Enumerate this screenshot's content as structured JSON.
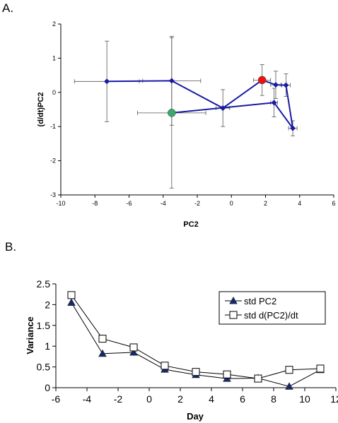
{
  "panels": {
    "a": "A.",
    "b": "B."
  },
  "chart_data": [
    {
      "type": "scatter",
      "xlabel": "PC2",
      "ylabel": "(d/dt)PC2",
      "xlim": [
        -10,
        6
      ],
      "ylim": [
        -3,
        2
      ],
      "xticks": [
        -10,
        -8,
        -6,
        -4,
        -2,
        0,
        2,
        4,
        6
      ],
      "yticks": [
        -3,
        -2,
        -1,
        0,
        1,
        2
      ],
      "line_color": "#1a1aa6",
      "points": [
        {
          "x": -7.3,
          "y": 0.32,
          "xerr": 1.9,
          "yerr": 1.18
        },
        {
          "x": -3.5,
          "y": 0.34,
          "xerr": 1.7,
          "yerr": 1.3
        },
        {
          "x": -0.5,
          "y": -0.46,
          "xerr": 0.4,
          "yerr": 0.54
        },
        {
          "x": 1.8,
          "y": 0.36,
          "xerr": 0.5,
          "yerr": 0.45
        },
        {
          "x": 2.6,
          "y": 0.22,
          "xerr": 0.3,
          "yerr": 0.4
        },
        {
          "x": 3.2,
          "y": 0.21,
          "xerr": 0.25,
          "yerr": 0.33
        },
        {
          "x": 3.6,
          "y": -1.05,
          "xerr": 0.25,
          "yerr": 0.22
        },
        {
          "x": 2.5,
          "y": -0.3,
          "xerr": 0.2,
          "yerr": 0.42
        },
        {
          "x": -3.5,
          "y": -0.6,
          "xerr": 2.0,
          "yerr": 2.2
        }
      ],
      "start_point": {
        "x": 1.8,
        "y": 0.36,
        "color": "#ee1111"
      },
      "end_point": {
        "x": -3.5,
        "y": -0.6,
        "color": "#3aaa6a"
      }
    },
    {
      "type": "line",
      "xlabel": "Day",
      "ylabel": "Variance",
      "xlim": [
        -6,
        12
      ],
      "ylim": [
        0,
        2.5
      ],
      "xticks": [
        -6,
        -4,
        -2,
        0,
        2,
        4,
        6,
        8,
        10,
        12
      ],
      "yticks": [
        0,
        0.5,
        1,
        1.5,
        2,
        2.5
      ],
      "x": [
        -5,
        -3,
        -1,
        1,
        3,
        5,
        7,
        9,
        11
      ],
      "series": [
        {
          "name": "std PC2",
          "marker": "triangle",
          "values": [
            2.05,
            0.82,
            0.85,
            0.44,
            0.31,
            0.22,
            0.23,
            0.03,
            0.43
          ]
        },
        {
          "name": "std d(PC2)/dt",
          "marker": "square-open",
          "values": [
            2.23,
            1.18,
            0.97,
            0.53,
            0.38,
            0.32,
            0.22,
            0.43,
            0.46
          ]
        }
      ]
    }
  ]
}
